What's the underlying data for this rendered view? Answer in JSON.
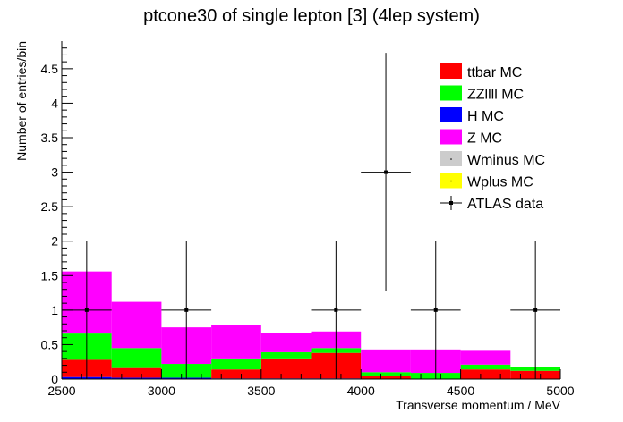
{
  "chart_data": {
    "type": "bar",
    "stacked": true,
    "title": "ptcone30 of single lepton [3] (4lep system)",
    "xlabel": "Transverse momentum / MeV",
    "ylabel": "Number of entries/bin",
    "xlim": [
      2500,
      5000
    ],
    "ylim": [
      0,
      4.9
    ],
    "bin_edges": [
      2500,
      2750,
      3000,
      3250,
      3500,
      3750,
      4000,
      4250,
      4500,
      4750,
      5000
    ],
    "x_ticks": [
      2500,
      3000,
      3500,
      4000,
      4500,
      5000
    ],
    "x_tick_labels": [
      "2500",
      "3000",
      "3500",
      "4000",
      "4500",
      "5000"
    ],
    "y_ticks": [
      0,
      0.5,
      1,
      1.5,
      2,
      2.5,
      3,
      3.5,
      4,
      4.5
    ],
    "y_tick_labels": [
      "0",
      "0.5",
      "1",
      "1.5",
      "2",
      "2.5",
      "3",
      "3.5",
      "4",
      "4.5"
    ],
    "series": [
      {
        "name": "H MC",
        "color": "#0000ff",
        "values": [
          0.03,
          0.02,
          0.02,
          0.01,
          0.01,
          0.01,
          0.0,
          0.0,
          0.0,
          0.0
        ]
      },
      {
        "name": "ttbar MC",
        "color": "#ff0000",
        "values": [
          0.25,
          0.14,
          0.0,
          0.13,
          0.29,
          0.37,
          0.05,
          0.0,
          0.14,
          0.12
        ]
      },
      {
        "name": "ZZllll MC",
        "color": "#00ff00",
        "values": [
          0.38,
          0.29,
          0.2,
          0.16,
          0.09,
          0.07,
          0.05,
          0.09,
          0.07,
          0.06
        ]
      },
      {
        "name": "Z MC",
        "color": "#ff00ff",
        "values": [
          0.9,
          0.67,
          0.53,
          0.49,
          0.28,
          0.24,
          0.33,
          0.34,
          0.2,
          0.0
        ]
      },
      {
        "name": "Wminus MC",
        "color": "#cccccc",
        "values": [
          0,
          0,
          0,
          0,
          0,
          0,
          0,
          0,
          0,
          0
        ]
      },
      {
        "name": "Wplus MC",
        "color": "#ffff00",
        "values": [
          0,
          0,
          0,
          0,
          0,
          0,
          0,
          0,
          0,
          0
        ]
      }
    ],
    "data": {
      "name": "ATLAS data",
      "x": [
        2625,
        3125,
        3875,
        4125,
        4375,
        4875
      ],
      "y": [
        1,
        1,
        1,
        3,
        1,
        1
      ],
      "y_err": [
        1,
        1,
        1,
        1.73,
        1,
        1
      ],
      "x_err": 125
    },
    "legend": {
      "position": "top-right",
      "entries": [
        {
          "label": "ttbar MC",
          "color": "#ff0000",
          "marker": "box"
        },
        {
          "label": "ZZllll MC",
          "color": "#00ff00",
          "marker": "box"
        },
        {
          "label": "H MC",
          "color": "#0000ff",
          "marker": "box"
        },
        {
          "label": "Z MC",
          "color": "#ff00ff",
          "marker": "box"
        },
        {
          "label": "Wminus MC",
          "color": "#cccccc",
          "marker": "box"
        },
        {
          "label": "Wplus MC",
          "color": "#ffff00",
          "marker": "box"
        },
        {
          "label": "ATLAS data",
          "color": "#000000",
          "marker": "point"
        }
      ]
    },
    "grid": false
  }
}
